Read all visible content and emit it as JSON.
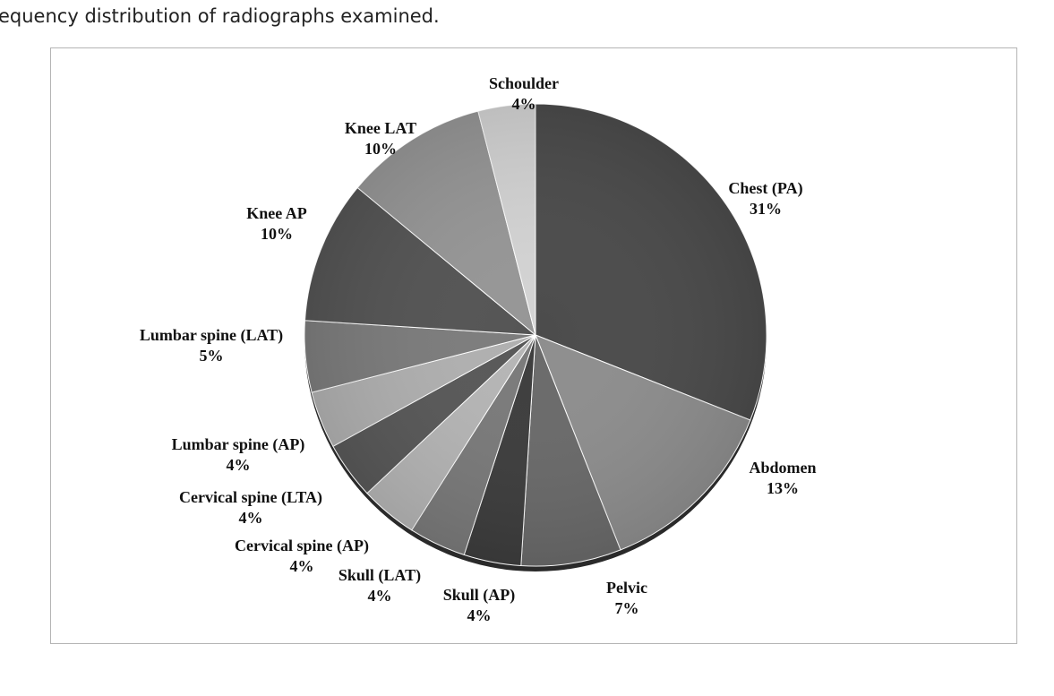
{
  "caption": "equency distribution of radiographs examined.",
  "chart_data": {
    "type": "pie",
    "title": "",
    "slices": [
      {
        "label": "Chest (PA)",
        "pct_text": "31%",
        "value": 31,
        "color": "#4b4b4b"
      },
      {
        "label": "Abdomen",
        "pct_text": "13%",
        "value": 13,
        "color": "#8e8e8e"
      },
      {
        "label": "Pelvic",
        "pct_text": "7%",
        "value": 7,
        "color": "#6a6a6a"
      },
      {
        "label": "Skull (AP)",
        "pct_text": "4%",
        "value": 4,
        "color": "#3d3d3d"
      },
      {
        "label": "Skull (LAT)",
        "pct_text": "4%",
        "value": 4,
        "color": "#7a7a7a"
      },
      {
        "label": "Cervical spine (AP)",
        "pct_text": "4%",
        "value": 4,
        "color": "#b5b5b5"
      },
      {
        "label": "Cervical spine (LTA)",
        "pct_text": "4%",
        "value": 4,
        "color": "#585858"
      },
      {
        "label": "Lumbar spine (AP)",
        "pct_text": "4%",
        "value": 4,
        "color": "#b0b0b0"
      },
      {
        "label": "Lumbar spine (LAT)",
        "pct_text": "5%",
        "value": 5,
        "color": "#7c7c7c"
      },
      {
        "label": "Knee AP",
        "pct_text": "10%",
        "value": 10,
        "color": "#545454"
      },
      {
        "label": "Knee LAT",
        "pct_text": "10%",
        "value": 10,
        "color": "#969696"
      },
      {
        "label": "Schoulder",
        "pct_text": "4%",
        "value": 4,
        "color": "#d3d3d3"
      }
    ]
  }
}
